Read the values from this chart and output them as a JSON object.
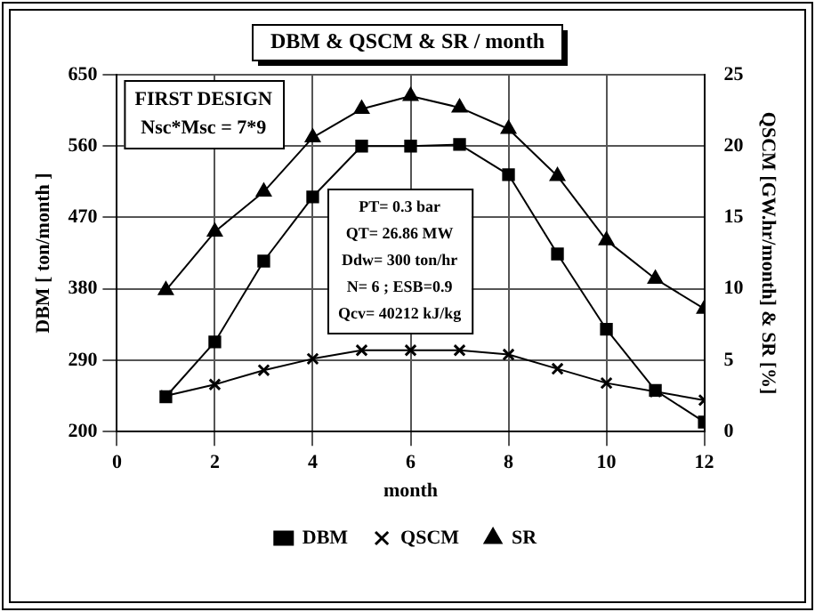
{
  "chart_data": {
    "type": "line",
    "title": "DBM & QSCM & SR / month",
    "xlabel": "month",
    "ylabel": "DBM [ ton/month ]",
    "y2label": "QSCM [GW.hr/month] & SR [%]",
    "x": [
      1,
      2,
      3,
      4,
      5,
      6,
      7,
      8,
      9,
      10,
      11,
      12
    ],
    "xlim": [
      0,
      12
    ],
    "xticks": [
      0,
      2,
      4,
      6,
      8,
      10,
      12
    ],
    "ylim": [
      200,
      650
    ],
    "yticks": [
      200,
      290,
      380,
      470,
      560,
      650
    ],
    "y2lim": [
      0,
      25
    ],
    "y2ticks": [
      0,
      5,
      10,
      15,
      20,
      25
    ],
    "series": [
      {
        "name": "DBM",
        "color": "#000000",
        "marker": "square",
        "values": [
          244,
          313,
          415,
          496,
          560,
          560,
          562,
          524,
          424,
          329,
          252,
          212
        ]
      },
      {
        "name": "QSCM",
        "color": "#000000",
        "marker": "cross",
        "axis": "y2",
        "values": [
          2.5,
          3.3,
          4.3,
          5.1,
          5.7,
          5.7,
          5.7,
          5.4,
          4.4,
          3.4,
          2.8,
          2.2
        ]
      },
      {
        "name": "SR",
        "color": "#000000",
        "marker": "triangle",
        "axis": "y2",
        "values": [
          9.9,
          14.0,
          16.8,
          20.6,
          22.6,
          23.5,
          22.7,
          21.2,
          17.9,
          13.4,
          10.7,
          8.6
        ]
      }
    ],
    "annotations": [
      "FIRST DESIGN",
      "Nsc*Msc = 7*9",
      "PT= 0.3 bar",
      "QT= 26.86 MW",
      "Ddw= 300 ton/hr",
      "N= 6 ; ESB=0.9",
      "Qcv= 40212 kJ/kg"
    ],
    "grid": true,
    "legend": "bottom",
    "line_style": "solid"
  }
}
